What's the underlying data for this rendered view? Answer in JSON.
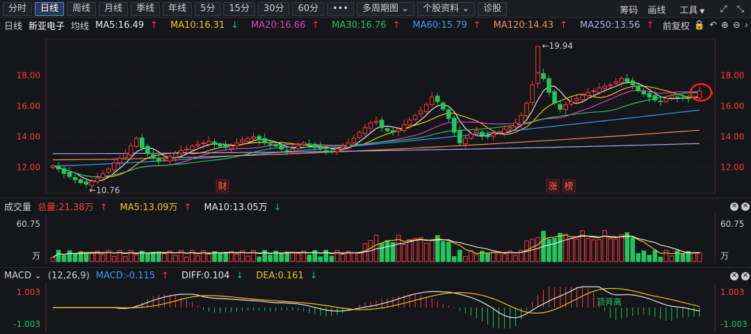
{
  "toolbar": {
    "periods": [
      "分时",
      "日线",
      "周线",
      "月线",
      "季线",
      "年线",
      "5分",
      "15分",
      "30分",
      "60分"
    ],
    "active_period": "日线",
    "more_label": "•••",
    "multi_period_label": "多周期图 ⌄",
    "stock_info_label": "个股资料 ⌄",
    "diagnose_label": "诊股",
    "chips_label": "筹码",
    "draw_label": "画线",
    "tools_label": "工具"
  },
  "ma_bar": {
    "period": "日线",
    "stock_name": "新亚电子",
    "line_type": "均线",
    "items": [
      {
        "label": "MA5:16.49",
        "color": "#e8e8e8",
        "arrow": "↑",
        "arrow_color": "#ff3b3b"
      },
      {
        "label": "MA10:16.31",
        "color": "#f5c518",
        "arrow": "↓",
        "arrow_color": "#22c55e"
      },
      {
        "label": "MA20:16.66",
        "color": "#e040c0",
        "arrow": "↑",
        "arrow_color": "#ff3b3b"
      },
      {
        "label": "MA30:16.76",
        "color": "#22c55e",
        "arrow": "↑",
        "arrow_color": "#ff3b3b"
      },
      {
        "label": "MA60:15.79",
        "color": "#3b9cff",
        "arrow": "↑",
        "arrow_color": "#ff3b3b"
      },
      {
        "label": "MA120:14.43",
        "color": "#f0905a",
        "arrow": "↑",
        "arrow_color": "#ff3b3b"
      },
      {
        "label": "MA250:13.56",
        "color": "#b0a8e8",
        "arrow": "↑",
        "arrow_color": "#ff3b3b"
      }
    ],
    "adjust_label": "前复权"
  },
  "price_axis": {
    "ticks": [
      "18.00",
      "16.00",
      "14.00",
      "12.00"
    ],
    "tick_values": [
      18,
      16,
      14,
      12
    ],
    "range": [
      10.3,
      20.3
    ]
  },
  "annotations": {
    "high": "←19.94",
    "low": "←10.76",
    "marker_cai": "财",
    "marker_zhang": "涨",
    "marker_bang": "榜",
    "divergence": "顶背离"
  },
  "volume": {
    "title": "成交量",
    "total": "总量:21.38万",
    "total_arrow": "↑",
    "ma5": "MA5:13.09万",
    "ma5_arrow": "↑",
    "ma10": "MA10:13.05万",
    "ma10_arrow": "↓",
    "axis_top": "60.75",
    "axis_unit": "万"
  },
  "macd": {
    "title": "MACD ⌄",
    "params": "(12,26,9)",
    "macd": "MACD:-0.115",
    "macd_arrow": "↑",
    "diff": "DIFF:0.104",
    "diff_arrow": "↓",
    "dea": "DEA:0.161",
    "dea_arrow": "↓",
    "axis_top": "1.003",
    "axis_bottom": "-1.003"
  },
  "chart_data": {
    "type": "candlestick",
    "title": "新亚电子 日线",
    "ylim": [
      10.3,
      20.3
    ],
    "closes": [
      12.1,
      11.9,
      11.6,
      11.4,
      11.2,
      11.0,
      10.9,
      11.1,
      11.3,
      11.6,
      11.9,
      12.3,
      12.6,
      12.9,
      13.4,
      13.9,
      13.3,
      12.9,
      12.6,
      12.4,
      12.5,
      12.7,
      12.9,
      13.1,
      13.2,
      13.4,
      13.5,
      13.6,
      13.7,
      13.5,
      13.4,
      13.3,
      13.4,
      13.6,
      13.8,
      13.9,
      14.0,
      13.8,
      13.6,
      13.5,
      13.4,
      13.2,
      13.1,
      13.2,
      13.4,
      13.6,
      13.5,
      13.3,
      13.2,
      13.1,
      13.0,
      13.2,
      13.4,
      13.6,
      13.9,
      14.3,
      14.6,
      14.9,
      15.0,
      14.6,
      14.4,
      14.3,
      14.5,
      14.8,
      15.1,
      15.4,
      15.7,
      16.1,
      16.6,
      16.3,
      15.8,
      15.2,
      14.3,
      13.6,
      13.9,
      14.2,
      14.4,
      14.1,
      14.0,
      14.2,
      14.3,
      14.5,
      14.6,
      14.9,
      15.4,
      16.2,
      17.4,
      18.2,
      17.8,
      16.9,
      16.2,
      15.8,
      16.1,
      16.3,
      16.5,
      16.7,
      16.9,
      17.0,
      17.2,
      17.3,
      17.4,
      17.6,
      17.8,
      17.6,
      17.4,
      17.0,
      16.8,
      16.6,
      16.4,
      16.3,
      16.5,
      16.7,
      16.6,
      16.5,
      16.49,
      16.6,
      17.0
    ],
    "ma_series": [
      {
        "name": "MA5",
        "color": "#e8e8e8"
      },
      {
        "name": "MA10",
        "color": "#f5c518"
      },
      {
        "name": "MA20",
        "color": "#e040c0"
      },
      {
        "name": "MA30",
        "color": "#22c55e"
      },
      {
        "name": "MA60",
        "color": "#3b9cff"
      },
      {
        "name": "MA120",
        "color": "#f0905a"
      },
      {
        "name": "MA250",
        "color": "#b0a8e8"
      }
    ],
    "volume_max": 60.75,
    "macd_range": [
      -1.003,
      1.003
    ]
  }
}
